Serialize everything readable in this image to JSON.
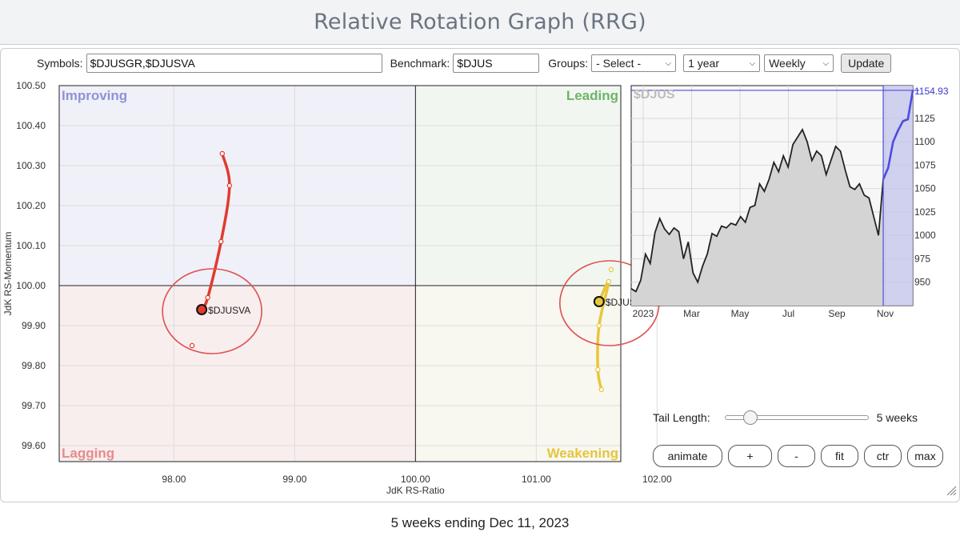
{
  "page_title": "Relative Rotation Graph (RRG)",
  "toolbar": {
    "symbols_label": "Symbols:",
    "symbols_value": "$DJUSGR,$DJUSVA",
    "benchmark_label": "Benchmark:",
    "benchmark_value": "$DJUS",
    "groups_label": "Groups:",
    "groups_value": "- Select -",
    "period_value": "1 year",
    "frequency_value": "Weekly",
    "update_label": "Update"
  },
  "colors": {
    "improving_bg": "#f0f0f8",
    "leading_bg": "#f1f7f0",
    "lagging_bg": "#f8eeee",
    "weakening_bg": "#f8f8f0",
    "improving_text": "#8e93d6",
    "leading_text": "#6fb36a",
    "lagging_text": "#e58c8c",
    "weakening_text": "#e5c53c",
    "vanilla_tail": "#e03b2e",
    "growth_tail": "#e9c63a",
    "highlight_ring": "#e05050",
    "benchmark_line": "#222222",
    "benchmark_recent": "#4c4ce0"
  },
  "chart_data": [
    {
      "type": "scatter",
      "title": "",
      "xlabel": "JdK RS-Ratio",
      "ylabel": "JdK RS-Momentum",
      "xlim": [
        97.05,
        101.7
      ],
      "ylim": [
        99.56,
        100.5
      ],
      "x_ticks": [
        "98.00",
        "99.00",
        "100.00",
        "101.00",
        "102.00"
      ],
      "x_tick_values": [
        98.0,
        99.0,
        100.0,
        101.0,
        102.0
      ],
      "y_ticks": [
        "100.50",
        "100.40",
        "100.30",
        "100.20",
        "100.10",
        "100.00",
        "99.90",
        "99.80",
        "99.70",
        "99.60"
      ],
      "y_tick_values": [
        100.5,
        100.4,
        100.3,
        100.2,
        100.1,
        100.0,
        99.9,
        99.8,
        99.7,
        99.6
      ],
      "quadrants": {
        "improving": "Improving",
        "leading": "Leading",
        "lagging": "Lagging",
        "weakening": "Weakening"
      },
      "center": [
        100.0,
        100.0
      ],
      "grid": true,
      "series": [
        {
          "name": "$DJUSVA",
          "color": "#e03b2e",
          "points": [
            [
              98.4,
              100.33
            ],
            [
              98.46,
              100.25
            ],
            [
              98.39,
              100.11
            ],
            [
              98.28,
              99.97
            ],
            [
              98.23,
              99.94
            ]
          ],
          "stray_point": [
            98.15,
            99.85
          ],
          "highlighted": true
        },
        {
          "name": "$DJUSGR",
          "color": "#e9c63a",
          "points": [
            [
              101.54,
              99.74
            ],
            [
              101.51,
              99.79
            ],
            [
              101.52,
              99.9
            ],
            [
              101.6,
              100.01
            ],
            [
              101.52,
              99.96
            ]
          ],
          "stray_point": [
            101.62,
            100.04
          ],
          "highlighted": true
        }
      ]
    },
    {
      "type": "line",
      "title": "$DJUS",
      "x_ticks": [
        "2023",
        "Mar",
        "May",
        "Jul",
        "Sep",
        "Nov"
      ],
      "y_ticks": [
        "1125",
        "1100",
        "1075",
        "1050",
        "1025",
        "1000",
        "975",
        "950"
      ],
      "y_tick_values": [
        1125,
        1100,
        1075,
        1050,
        1025,
        1000,
        975,
        950
      ],
      "ylim": [
        925,
        1160
      ],
      "last_value_label": "1154.93",
      "last_value": 1154.93,
      "values": [
        943,
        940,
        952,
        980,
        970,
        1003,
        1018,
        1007,
        1001,
        1008,
        1004,
        975,
        993,
        960,
        950,
        967,
        980,
        1002,
        999,
        1010,
        1008,
        1013,
        1011,
        1020,
        1014,
        1030,
        1032,
        1055,
        1047,
        1060,
        1078,
        1068,
        1085,
        1073,
        1097,
        1105,
        1113,
        1100,
        1080,
        1090,
        1085,
        1065,
        1080,
        1095,
        1090,
        1070,
        1052,
        1049,
        1055,
        1043,
        1040,
        1020,
        1000,
        1060
      ],
      "recent_values": [
        1060,
        1072,
        1100,
        1112,
        1122,
        1124,
        1154.93
      ]
    }
  ],
  "tail": {
    "label": "Tail Length:",
    "value_label": "5 weeks",
    "value": 5,
    "max": 52
  },
  "controls": {
    "animate": "animate",
    "plus": "+",
    "minus": "-",
    "fit": "fit",
    "ctr": "ctr",
    "max": "max"
  },
  "footer": "5 weeks ending Dec 11, 2023"
}
